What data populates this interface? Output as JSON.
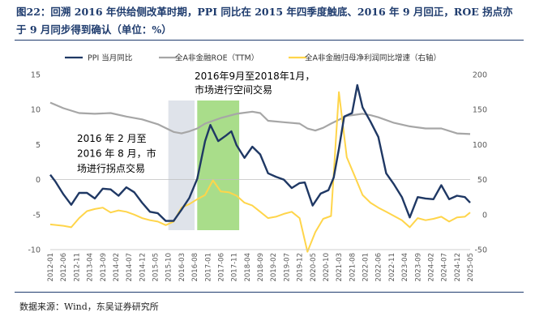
{
  "title": "图22：回溯 2016 年供给侧改革时期，PPI 同比在 2015 年四季度触底、2016 年 9 月回正，ROE 拐点亦于 9 月同步得到确认（单位：%）",
  "source": "数据来源：Wind，东吴证券研究所",
  "colors": {
    "ppi": "#1f3864",
    "roe": "#a6a6a6",
    "profit": "#ffd54a",
    "band_low": "#dfe3ea",
    "band_rise": "#a9dd8a"
  },
  "chart_data": {
    "type": "line",
    "title": "",
    "xlabel": "",
    "ylabel": "",
    "x_ticks": [
      "2012-01",
      "2012-06",
      "2012-11",
      "2013-04",
      "2013-09",
      "2014-02",
      "2014-07",
      "2014-12",
      "2015-05",
      "2015-10",
      "2016-03",
      "2016-08",
      "2017-01",
      "2017-06",
      "2017-11",
      "2018-04",
      "2018-09",
      "2019-02",
      "2019-07",
      "2019-12",
      "2020-05",
      "2020-10",
      "2021-03",
      "2021-08",
      "2022-01",
      "2022-06",
      "2022-11",
      "2023-04",
      "2023-09",
      "2024-02",
      "2024-07",
      "2024-12",
      "2025-05"
    ],
    "y_left": {
      "range": [
        -10,
        15
      ],
      "ticks": [
        "-10",
        "-5",
        "0",
        "5",
        "10",
        "15"
      ]
    },
    "y_right": {
      "range": [
        -50,
        200
      ],
      "ticks": [
        "-50",
        "0",
        "50",
        "100",
        "150",
        "200"
      ]
    },
    "legend": {
      "position": "top",
      "entries": [
        "PPI 当月同比",
        "全A非金融ROE（TTM）",
        "全A非金融归母净利润同比增速（右轴）"
      ]
    },
    "series": [
      {
        "name": "PPI 当月同比",
        "axis": "left",
        "points": [
          [
            "2012-01",
            0.7
          ],
          [
            "2012-03",
            -0.3
          ],
          [
            "2012-06",
            -2.1
          ],
          [
            "2012-09",
            -3.6
          ],
          [
            "2012-12",
            -1.9
          ],
          [
            "2013-03",
            -1.9
          ],
          [
            "2013-06",
            -2.7
          ],
          [
            "2013-09",
            -1.3
          ],
          [
            "2013-12",
            -1.4
          ],
          [
            "2014-03",
            -2.3
          ],
          [
            "2014-06",
            -1.1
          ],
          [
            "2014-09",
            -1.8
          ],
          [
            "2014-12",
            -3.3
          ],
          [
            "2015-03",
            -4.6
          ],
          [
            "2015-06",
            -4.8
          ],
          [
            "2015-09",
            -5.9
          ],
          [
            "2015-12",
            -5.9
          ],
          [
            "2016-03",
            -4.3
          ],
          [
            "2016-06",
            -2.6
          ],
          [
            "2016-09",
            0.1
          ],
          [
            "2016-12",
            5.5
          ],
          [
            "2017-02",
            7.8
          ],
          [
            "2017-05",
            5.5
          ],
          [
            "2017-08",
            6.3
          ],
          [
            "2017-10",
            6.9
          ],
          [
            "2017-12",
            4.9
          ],
          [
            "2018-03",
            3.1
          ],
          [
            "2018-06",
            4.7
          ],
          [
            "2018-09",
            3.6
          ],
          [
            "2018-12",
            0.9
          ],
          [
            "2019-03",
            0.4
          ],
          [
            "2019-06",
            0.0
          ],
          [
            "2019-09",
            -1.2
          ],
          [
            "2019-12",
            -0.5
          ],
          [
            "2020-02",
            -0.4
          ],
          [
            "2020-05",
            -3.7
          ],
          [
            "2020-08",
            -2.0
          ],
          [
            "2020-11",
            -1.5
          ],
          [
            "2021-01",
            0.3
          ],
          [
            "2021-03",
            4.4
          ],
          [
            "2021-05",
            9.0
          ],
          [
            "2021-08",
            9.5
          ],
          [
            "2021-10",
            13.5
          ],
          [
            "2021-12",
            10.3
          ],
          [
            "2022-03",
            8.3
          ],
          [
            "2022-06",
            6.1
          ],
          [
            "2022-09",
            0.9
          ],
          [
            "2022-12",
            -0.7
          ],
          [
            "2023-03",
            -2.5
          ],
          [
            "2023-06",
            -5.4
          ],
          [
            "2023-09",
            -2.5
          ],
          [
            "2023-12",
            -2.7
          ],
          [
            "2024-03",
            -2.8
          ],
          [
            "2024-06",
            -0.8
          ],
          [
            "2024-09",
            -2.8
          ],
          [
            "2024-12",
            -2.3
          ],
          [
            "2025-03",
            -2.5
          ],
          [
            "2025-05",
            -3.3
          ]
        ]
      },
      {
        "name": "全A非金融ROE（TTM）",
        "axis": "left",
        "points": [
          [
            "2012-01",
            11.0
          ],
          [
            "2012-06",
            10.2
          ],
          [
            "2012-12",
            9.5
          ],
          [
            "2013-06",
            9.4
          ],
          [
            "2013-12",
            9.5
          ],
          [
            "2014-06",
            9.0
          ],
          [
            "2014-12",
            8.6
          ],
          [
            "2015-06",
            7.9
          ],
          [
            "2015-12",
            6.8
          ],
          [
            "2016-03",
            6.6
          ],
          [
            "2016-06",
            6.9
          ],
          [
            "2016-09",
            7.3
          ],
          [
            "2016-12",
            8.0
          ],
          [
            "2017-06",
            8.8
          ],
          [
            "2017-12",
            9.4
          ],
          [
            "2018-06",
            9.7
          ],
          [
            "2018-09",
            9.5
          ],
          [
            "2018-12",
            8.4
          ],
          [
            "2019-06",
            8.2
          ],
          [
            "2019-12",
            8.0
          ],
          [
            "2020-03",
            7.3
          ],
          [
            "2020-06",
            7.0
          ],
          [
            "2020-09",
            7.4
          ],
          [
            "2020-12",
            8.0
          ],
          [
            "2021-06",
            9.1
          ],
          [
            "2021-12",
            9.4
          ],
          [
            "2022-03",
            9.2
          ],
          [
            "2022-06",
            8.9
          ],
          [
            "2022-12",
            8.1
          ],
          [
            "2023-06",
            7.6
          ],
          [
            "2023-12",
            7.3
          ],
          [
            "2024-06",
            7.3
          ],
          [
            "2024-12",
            6.6
          ],
          [
            "2025-05",
            6.5
          ]
        ]
      },
      {
        "name": "全A非金融归母净利润同比增速（右轴）",
        "axis": "right",
        "points": [
          [
            "2012-01",
            -14
          ],
          [
            "2012-06",
            -16
          ],
          [
            "2012-09",
            -18
          ],
          [
            "2012-12",
            -5
          ],
          [
            "2013-03",
            5
          ],
          [
            "2013-06",
            8
          ],
          [
            "2013-09",
            10
          ],
          [
            "2013-12",
            3
          ],
          [
            "2014-03",
            6
          ],
          [
            "2014-06",
            4
          ],
          [
            "2014-09",
            0
          ],
          [
            "2014-12",
            -5
          ],
          [
            "2015-03",
            -8
          ],
          [
            "2015-06",
            -10
          ],
          [
            "2015-09",
            -15
          ],
          [
            "2015-12",
            -10
          ],
          [
            "2016-03",
            10
          ],
          [
            "2016-06",
            15
          ],
          [
            "2016-09",
            22
          ],
          [
            "2016-12",
            28
          ],
          [
            "2017-03",
            49
          ],
          [
            "2017-06",
            33
          ],
          [
            "2017-09",
            32
          ],
          [
            "2017-12",
            27
          ],
          [
            "2018-03",
            17
          ],
          [
            "2018-06",
            13
          ],
          [
            "2018-09",
            4
          ],
          [
            "2018-12",
            -5
          ],
          [
            "2019-03",
            -3
          ],
          [
            "2019-06",
            1
          ],
          [
            "2019-09",
            4
          ],
          [
            "2019-12",
            -5
          ],
          [
            "2020-03",
            -53
          ],
          [
            "2020-06",
            -25
          ],
          [
            "2020-09",
            -6
          ],
          [
            "2020-12",
            -2
          ],
          [
            "2021-03",
            175
          ],
          [
            "2021-06",
            82
          ],
          [
            "2021-09",
            55
          ],
          [
            "2021-12",
            28
          ],
          [
            "2022-03",
            17
          ],
          [
            "2022-06",
            10
          ],
          [
            "2022-09",
            4
          ],
          [
            "2022-12",
            -2
          ],
          [
            "2023-03",
            -8
          ],
          [
            "2023-06",
            -18
          ],
          [
            "2023-09",
            -5
          ],
          [
            "2023-12",
            -8
          ],
          [
            "2024-03",
            -6
          ],
          [
            "2024-06",
            -3
          ],
          [
            "2024-09",
            -10
          ],
          [
            "2024-12",
            -4
          ],
          [
            "2025-03",
            -3
          ],
          [
            "2025-05",
            3
          ]
        ]
      }
    ],
    "shaded_regions": [
      {
        "start": "2015-10",
        "end": "2016-08",
        "color": "band_low"
      },
      {
        "start": "2016-09",
        "end": "2018-01",
        "color": "band_rise"
      }
    ],
    "annotations": [
      {
        "lines": [
          "2016年9月至2018年1月，",
          "市场进行空间交易"
        ]
      },
      {
        "lines": [
          "2016 年 2 月至",
          "2016 年 8 月，市",
          "场进行拐点交易"
        ]
      }
    ]
  }
}
